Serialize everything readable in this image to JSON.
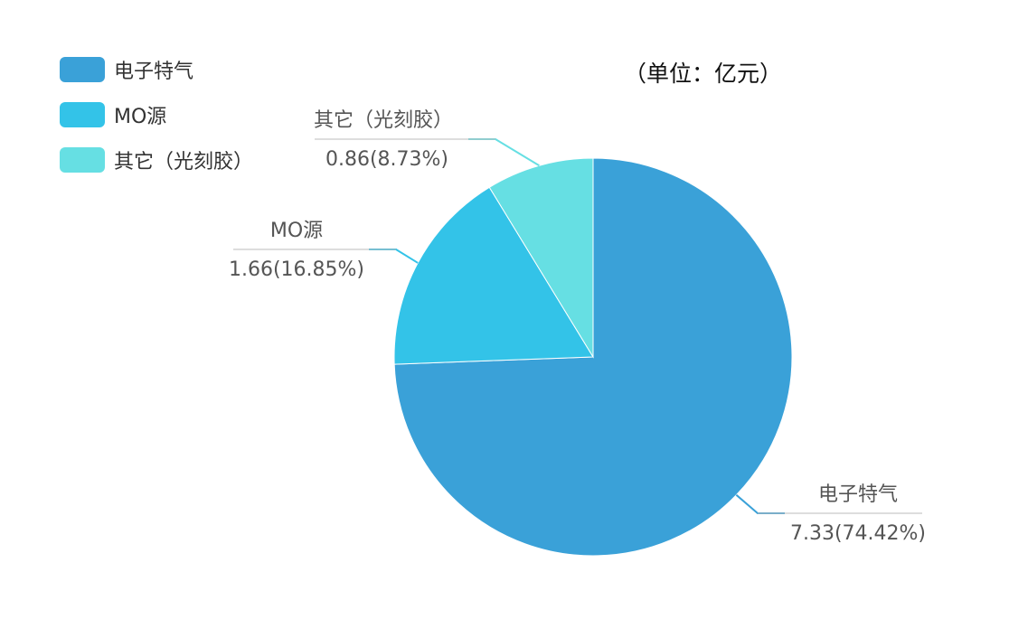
{
  "unit": "（单位：亿元）",
  "legend": [
    {
      "label": "电子特气",
      "color": "#3aa1d8"
    },
    {
      "label": "MO源",
      "color": "#33c3e8"
    },
    {
      "label": "其它（光刻胶）",
      "color": "#66dfe3"
    }
  ],
  "chart_data": {
    "type": "pie",
    "title": "",
    "slices": [
      {
        "name": "电子特气",
        "value": 7.33,
        "percent": "74.42%",
        "label_value": "7.33(74.42%)",
        "color": "#3aa1d8"
      },
      {
        "name": "MO源",
        "value": 1.66,
        "percent": "16.85%",
        "label_value": "1.66(16.85%)",
        "color": "#33c3e8"
      },
      {
        "name": "其它（光刻胶）",
        "value": 0.86,
        "percent": "8.73%",
        "label_value": "0.86(8.73%)",
        "color": "#66dfe3"
      }
    ],
    "legend_position": "top-left",
    "start": "top",
    "direction": "clockwise"
  }
}
